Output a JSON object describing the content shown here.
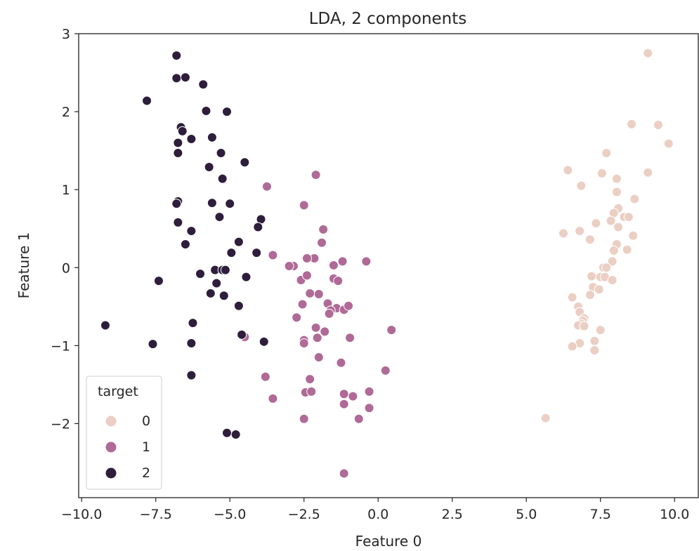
{
  "chart_data": {
    "type": "scatter",
    "title": "LDA, 2 components",
    "xlabel": "Feature 0",
    "ylabel": "Feature 1",
    "xlim": [
      -10.1,
      10.8
    ],
    "ylim": [
      -2.95,
      3.0
    ],
    "xticks": [
      -10.0,
      -7.5,
      -5.0,
      -2.5,
      0.0,
      2.5,
      5.0,
      7.5,
      10.0
    ],
    "xtick_labels": [
      "−10.0",
      "−7.5",
      "−5.0",
      "−2.5",
      "0.0",
      "2.5",
      "5.0",
      "7.5",
      "10.0"
    ],
    "yticks": [
      -2,
      -1,
      0,
      1,
      2,
      3
    ],
    "ytick_labels": [
      "−2",
      "−1",
      "0",
      "1",
      "2",
      "3"
    ],
    "grid": false,
    "legend": {
      "title": "target",
      "placement": "lower-left",
      "entries": [
        {
          "label": "0",
          "color": "#ebcfc4"
        },
        {
          "label": "1",
          "color": "#b06a97"
        },
        {
          "label": "2",
          "color": "#2e1e3c"
        }
      ]
    },
    "series": [
      {
        "name": "0",
        "color": "#ebcfc4",
        "points": [
          [
            9.1,
            2.75
          ],
          [
            8.55,
            1.84
          ],
          [
            9.45,
            1.83
          ],
          [
            9.8,
            1.59
          ],
          [
            7.7,
            1.47
          ],
          [
            6.4,
            1.25
          ],
          [
            7.55,
            1.21
          ],
          [
            9.1,
            1.22
          ],
          [
            8.05,
            1.14
          ],
          [
            6.85,
            1.05
          ],
          [
            8.05,
            0.97
          ],
          [
            8.65,
            0.88
          ],
          [
            8.1,
            0.76
          ],
          [
            7.95,
            0.7
          ],
          [
            7.85,
            0.6
          ],
          [
            8.3,
            0.65
          ],
          [
            8.45,
            0.65
          ],
          [
            7.35,
            0.57
          ],
          [
            8.1,
            0.52
          ],
          [
            6.25,
            0.44
          ],
          [
            6.8,
            0.47
          ],
          [
            7.15,
            0.36
          ],
          [
            8.6,
            0.41
          ],
          [
            8.05,
            0.3
          ],
          [
            8.4,
            0.23
          ],
          [
            7.95,
            0.22
          ],
          [
            7.9,
            0.08
          ],
          [
            7.6,
            0.0
          ],
          [
            7.7,
            0.0
          ],
          [
            7.2,
            -0.11
          ],
          [
            7.5,
            -0.12
          ],
          [
            7.65,
            -0.12
          ],
          [
            7.9,
            -0.16
          ],
          [
            7.25,
            -0.25
          ],
          [
            7.45,
            -0.28
          ],
          [
            7.15,
            -0.35
          ],
          [
            6.55,
            -0.38
          ],
          [
            6.75,
            -0.5
          ],
          [
            6.8,
            -0.57
          ],
          [
            6.95,
            -0.65
          ],
          [
            6.9,
            -0.68
          ],
          [
            6.85,
            -0.72
          ],
          [
            6.75,
            -0.74
          ],
          [
            6.95,
            -0.75
          ],
          [
            7.5,
            -0.8
          ],
          [
            7.3,
            -0.94
          ],
          [
            6.8,
            -0.97
          ],
          [
            6.55,
            -1.01
          ],
          [
            7.3,
            -1.06
          ],
          [
            5.65,
            -1.93
          ]
        ]
      },
      {
        "name": "1",
        "color": "#b06a97",
        "points": [
          [
            -2.1,
            1.19
          ],
          [
            -3.75,
            1.04
          ],
          [
            -2.5,
            0.8
          ],
          [
            -1.85,
            0.49
          ],
          [
            -1.9,
            0.32
          ],
          [
            -3.55,
            0.16
          ],
          [
            -2.15,
            0.12
          ],
          [
            -2.4,
            0.12
          ],
          [
            -1.2,
            0.08
          ],
          [
            -0.4,
            0.08
          ],
          [
            -2.85,
            0.02
          ],
          [
            -3.0,
            0.02
          ],
          [
            -1.5,
            0.03
          ],
          [
            -2.6,
            -0.16
          ],
          [
            -2.4,
            -0.1
          ],
          [
            -1.5,
            -0.14
          ],
          [
            -1.35,
            -0.17
          ],
          [
            -2.3,
            -0.33
          ],
          [
            -2.0,
            -0.34
          ],
          [
            -1.7,
            -0.46
          ],
          [
            -2.55,
            -0.47
          ],
          [
            -1.4,
            -0.52
          ],
          [
            -1.6,
            -0.55
          ],
          [
            -1.15,
            -0.54
          ],
          [
            -1.0,
            -0.49
          ],
          [
            -1.65,
            -0.59
          ],
          [
            -2.75,
            -0.64
          ],
          [
            -2.1,
            -0.77
          ],
          [
            -1.8,
            -0.82
          ],
          [
            0.45,
            -0.8
          ],
          [
            -2.5,
            -0.93
          ],
          [
            -2.05,
            -0.9
          ],
          [
            -0.95,
            -0.9
          ],
          [
            -2.5,
            -0.97
          ],
          [
            -4.5,
            -0.89
          ],
          [
            -2.0,
            -1.15
          ],
          [
            -1.25,
            -1.22
          ],
          [
            0.25,
            -1.32
          ],
          [
            -3.8,
            -1.4
          ],
          [
            -2.3,
            -1.43
          ],
          [
            -0.3,
            -1.59
          ],
          [
            -2.45,
            -1.6
          ],
          [
            -2.25,
            -1.59
          ],
          [
            -1.15,
            -1.62
          ],
          [
            -0.85,
            -1.65
          ],
          [
            -1.15,
            -1.75
          ],
          [
            -3.55,
            -1.68
          ],
          [
            -0.3,
            -1.8
          ],
          [
            -2.5,
            -1.94
          ],
          [
            -0.65,
            -1.94
          ],
          [
            -1.15,
            -2.64
          ]
        ]
      },
      {
        "name": "2",
        "color": "#2e1e3c",
        "points": [
          [
            -6.8,
            2.72
          ],
          [
            -6.8,
            2.43
          ],
          [
            -6.5,
            2.44
          ],
          [
            -5.9,
            2.35
          ],
          [
            -7.8,
            2.14
          ],
          [
            -5.8,
            2.01
          ],
          [
            -5.1,
            2.0
          ],
          [
            -6.65,
            1.8
          ],
          [
            -6.6,
            1.75
          ],
          [
            -5.6,
            1.67
          ],
          [
            -6.3,
            1.65
          ],
          [
            -6.75,
            1.6
          ],
          [
            -5.3,
            1.47
          ],
          [
            -6.75,
            1.47
          ],
          [
            -4.5,
            1.35
          ],
          [
            -5.7,
            1.29
          ],
          [
            -5.25,
            1.14
          ],
          [
            -6.75,
            0.85
          ],
          [
            -6.8,
            0.82
          ],
          [
            -5.6,
            0.83
          ],
          [
            -5.0,
            0.82
          ],
          [
            -5.35,
            0.65
          ],
          [
            -3.95,
            0.62
          ],
          [
            -4.05,
            0.52
          ],
          [
            -6.75,
            0.58
          ],
          [
            -6.3,
            0.47
          ],
          [
            -4.7,
            0.33
          ],
          [
            -6.5,
            0.3
          ],
          [
            -4.95,
            0.19
          ],
          [
            -4.1,
            0.19
          ],
          [
            -5.5,
            -0.03
          ],
          [
            -5.25,
            -0.03
          ],
          [
            -5.15,
            -0.03
          ],
          [
            -6.0,
            -0.08
          ],
          [
            -4.45,
            -0.12
          ],
          [
            -7.4,
            -0.17
          ],
          [
            -5.45,
            -0.2
          ],
          [
            -5.65,
            -0.33
          ],
          [
            -5.2,
            -0.36
          ],
          [
            -4.7,
            -0.49
          ],
          [
            -6.25,
            -0.71
          ],
          [
            -9.2,
            -0.74
          ],
          [
            -4.6,
            -0.86
          ],
          [
            -3.85,
            -0.95
          ],
          [
            -7.6,
            -0.98
          ],
          [
            -6.3,
            -0.97
          ],
          [
            -6.3,
            -1.38
          ],
          [
            -5.1,
            -2.12
          ],
          [
            -4.8,
            -2.14
          ]
        ]
      }
    ]
  }
}
